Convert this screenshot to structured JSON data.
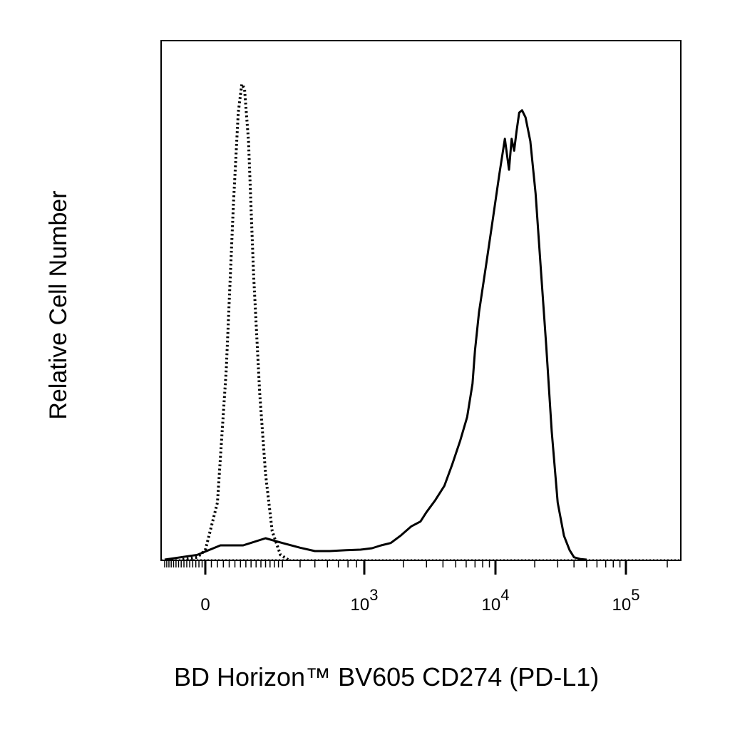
{
  "chart_data": {
    "type": "line",
    "title": "",
    "xlabel": "BD Horizon™ BV605 CD274 (PD-L1)",
    "ylabel": "Relative Cell Number",
    "x_scale": "biexponential",
    "xlim": [
      -300,
      200000
    ],
    "ylim": [
      0,
      100
    ],
    "grid": false,
    "legend": "none",
    "x_tick_labels": [
      {
        "label": "0",
        "base": "0",
        "exp": "",
        "value": 0
      },
      {
        "label": "10^3",
        "base": "10",
        "exp": "3",
        "value": 1000
      },
      {
        "label": "10^4",
        "base": "10",
        "exp": "4",
        "value": 10000
      },
      {
        "label": "10^5",
        "base": "10",
        "exp": "5",
        "value": 100000
      }
    ],
    "series": [
      {
        "style": "dotted",
        "color": "#000000",
        "x": [
          -150,
          -50,
          0,
          40,
          70,
          95,
          112,
          125,
          135,
          150,
          170,
          195,
          220,
          250,
          290,
          330
        ],
        "y": [
          0,
          0.5,
          2,
          12,
          40,
          75,
          94,
          100,
          99,
          88,
          60,
          35,
          18,
          6,
          1,
          0
        ]
      },
      {
        "style": "solid",
        "color": "#000000",
        "x": [
          -300,
          -50,
          50,
          130,
          220,
          300,
          400,
          500,
          620,
          780,
          950,
          1150,
          1350,
          1600,
          1900,
          2300,
          2700,
          3000,
          3500,
          4100,
          4700,
          5400,
          6100,
          6700,
          7000,
          7500,
          8500,
          9600,
          10700,
          11800,
          12700,
          13300,
          13900,
          14500,
          15200,
          16000,
          17000,
          18500,
          20300,
          22300,
          24500,
          27000,
          30000,
          33500,
          37000,
          40000,
          45000,
          50000
        ],
        "y": [
          0,
          1,
          3,
          3,
          4.5,
          3.5,
          2.5,
          1.8,
          1.8,
          2,
          2.1,
          2.4,
          3,
          3.5,
          5,
          7,
          8,
          10,
          12.5,
          15.5,
          20,
          25,
          30,
          37,
          44,
          52,
          62,
          72,
          81,
          88.5,
          82,
          88.5,
          86,
          90,
          94,
          94.5,
          93,
          88,
          77,
          61,
          45,
          27,
          12,
          5,
          2,
          0.5,
          0.1,
          0
        ]
      }
    ]
  }
}
